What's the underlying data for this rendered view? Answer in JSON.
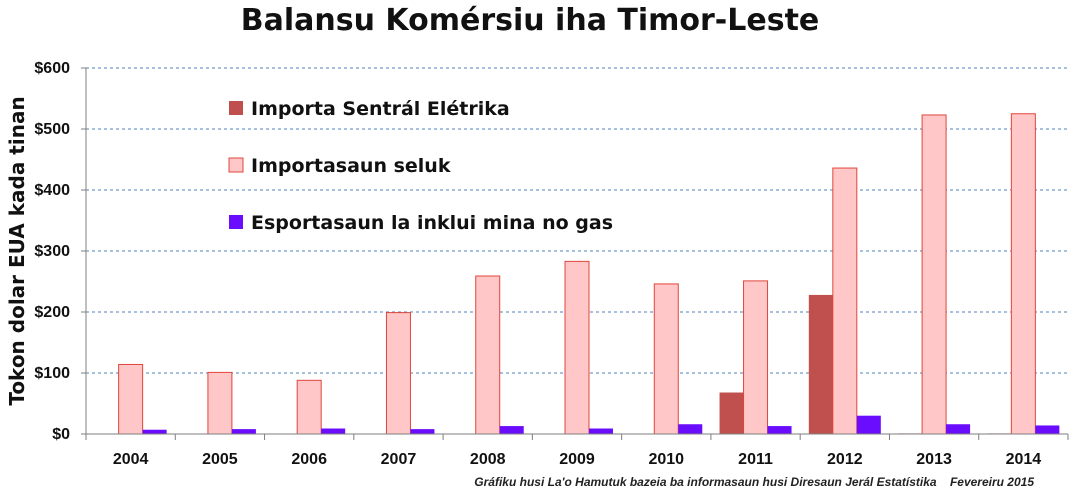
{
  "chart_data": {
    "type": "bar",
    "title": "Balansu Komérsiu iha Timor-Leste",
    "ylabel": "Tokon dolar EUA kada tinan",
    "xlabel": "",
    "categories": [
      "2004",
      "2005",
      "2006",
      "2007",
      "2008",
      "2009",
      "2010",
      "2011",
      "2012",
      "2013",
      "2014"
    ],
    "ylim": [
      0,
      600
    ],
    "yticks": [
      "$0",
      "$100",
      "$200",
      "$300",
      "$400",
      "$500",
      "$600"
    ],
    "grid": true,
    "legend_position": "top-left",
    "series": [
      {
        "name": "Importa Sentrál Elétrika",
        "color": "#c0504d",
        "values": [
          0,
          0,
          0,
          0,
          0,
          0,
          0,
          68,
          228,
          1,
          1
        ]
      },
      {
        "name": "Importasaun seluk",
        "color": "#ffc7c7",
        "stroke": "#e0463c",
        "values": [
          114,
          101,
          88,
          199,
          259,
          283,
          246,
          251,
          436,
          523,
          525
        ]
      },
      {
        "name": "Esportasaun la inklui mina no gas",
        "color": "#6a0dff",
        "values": [
          7,
          8,
          9,
          8,
          13,
          9,
          16,
          13,
          30,
          16,
          14
        ]
      }
    ],
    "footnote": "Gráfiku husi La'o Hamutuk bazeia ba informasaun husi Diresaun Jerál Estatístika    Fevereiru 2015"
  }
}
